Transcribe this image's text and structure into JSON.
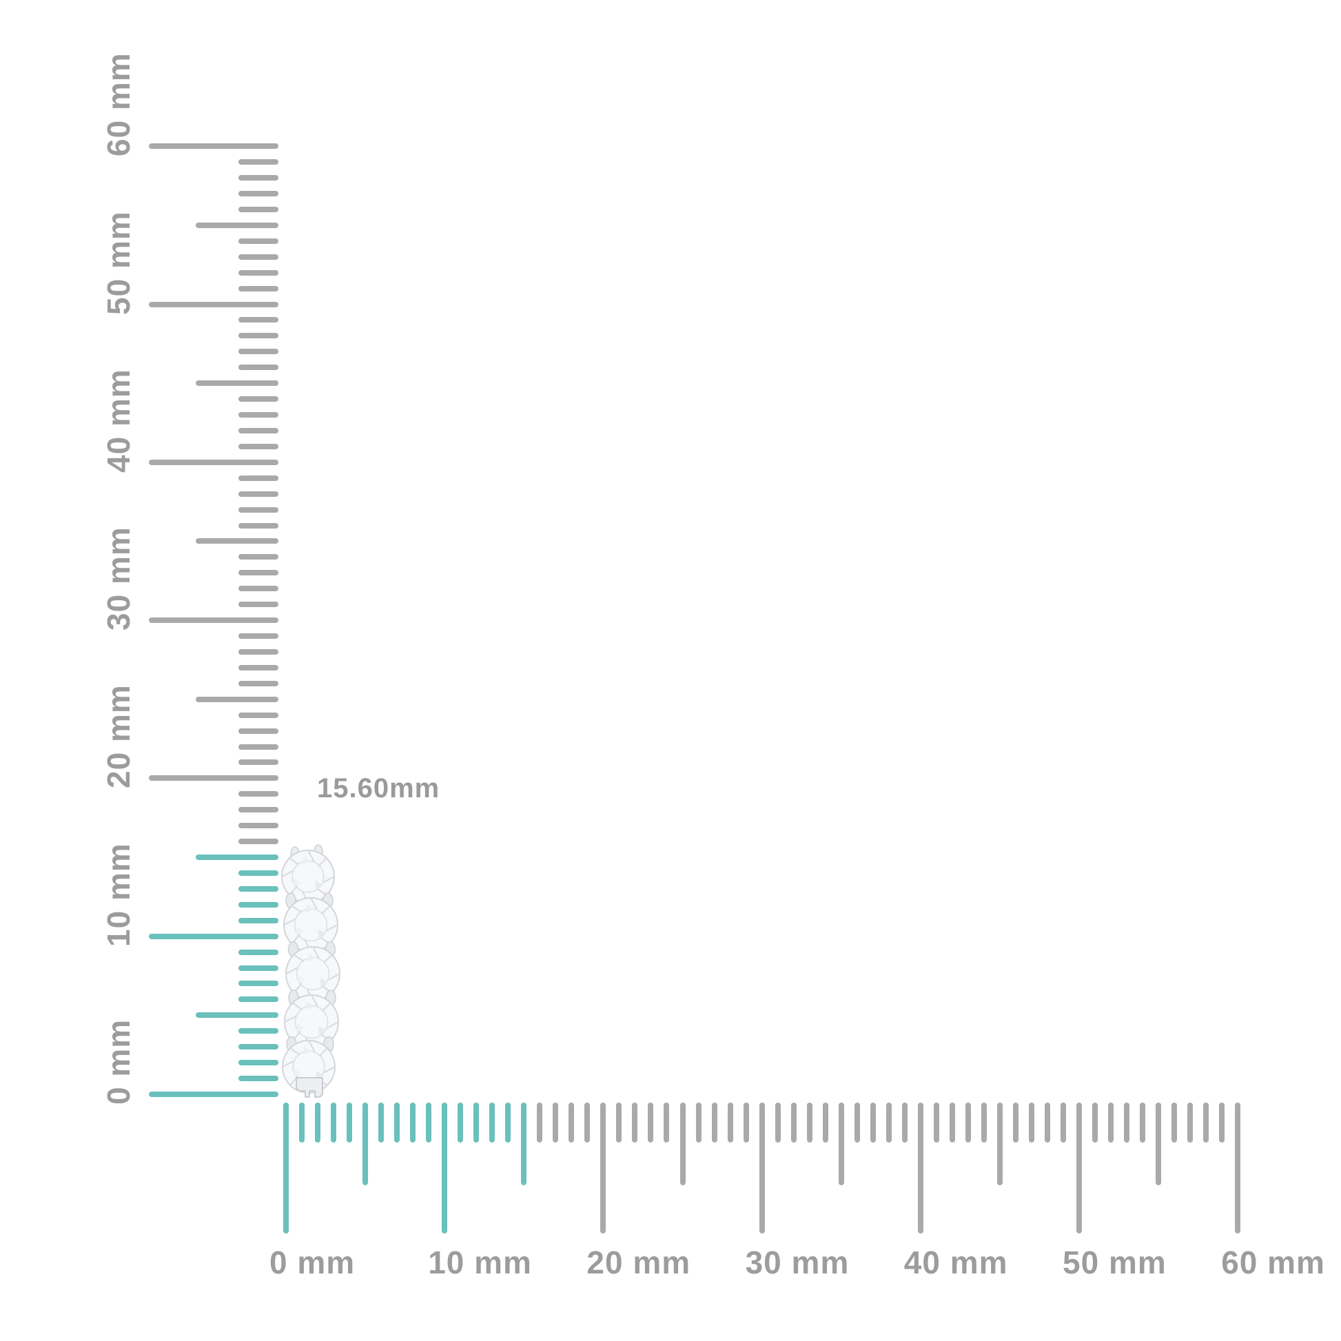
{
  "measurement": {
    "label": "15.60mm",
    "value_mm": 15.6
  },
  "rulers": {
    "unit": "mm",
    "vertical": {
      "min_mm": 0,
      "max_mm": 60,
      "highlight_to_mm": 15.6,
      "labels": [
        {
          "mm": 0,
          "text": "0 mm"
        },
        {
          "mm": 10,
          "text": "10 mm"
        },
        {
          "mm": 20,
          "text": "20 mm"
        },
        {
          "mm": 30,
          "text": "30 mm"
        },
        {
          "mm": 40,
          "text": "40 mm"
        },
        {
          "mm": 50,
          "text": "50 mm"
        },
        {
          "mm": 60,
          "text": "60 mm"
        }
      ]
    },
    "horizontal": {
      "min_mm": 0,
      "max_mm": 60,
      "highlight_to_mm": 15.6,
      "labels": [
        {
          "mm": 0,
          "text": "0 mm"
        },
        {
          "mm": 10,
          "text": "10 mm"
        },
        {
          "mm": 20,
          "text": "20 mm"
        },
        {
          "mm": 30,
          "text": "30 mm"
        },
        {
          "mm": 40,
          "text": "40 mm"
        },
        {
          "mm": 50,
          "text": "50 mm"
        },
        {
          "mm": 60,
          "text": "60 mm"
        }
      ]
    }
  },
  "item": {
    "description": "five-stone diamond hoop earring",
    "stone_count": 5,
    "height_label": "15.60mm"
  },
  "colors": {
    "highlight_teal": "#69c0bc",
    "tick_gray": "#a9a9a9",
    "label_gray": "#9c9c9c",
    "background": "#ffffff"
  }
}
